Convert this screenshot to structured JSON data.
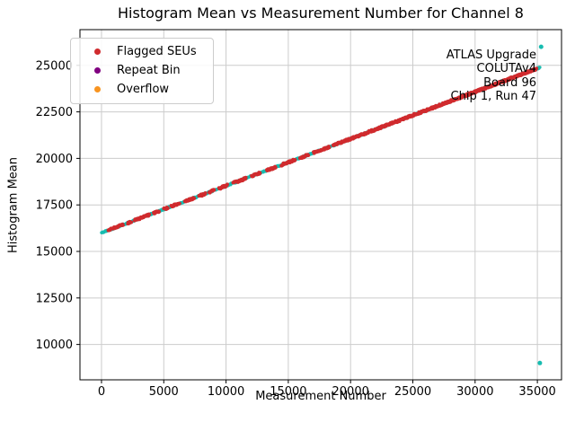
{
  "figure": {
    "title": "Histogram Mean vs Measurement Number for Channel 8",
    "xlabel": "Measurement Number",
    "ylabel": "Histogram Mean"
  },
  "chart_data": {
    "type": "scatter",
    "title": "Histogram Mean vs Measurement Number for Channel 8",
    "xlabel": "Measurement Number",
    "ylabel": "Histogram Mean",
    "xlim": [
      -1730,
      36940
    ],
    "ylim": [
      8100,
      26920
    ],
    "x_ticks": [
      0,
      5000,
      10000,
      15000,
      20000,
      25000,
      30000,
      35000
    ],
    "y_ticks": [
      10000,
      12500,
      15000,
      17500,
      20000,
      22500,
      25000
    ],
    "grid": true,
    "grid_color": "#cccccc",
    "legend_position": "upper-left",
    "legend": [
      {
        "label": "Flagged SEUs",
        "color": "#d02b2e",
        "marker": "dot"
      },
      {
        "label": "Repeat Bin",
        "color": "#800080",
        "marker": "dot"
      },
      {
        "label": "Overflow",
        "color": "#f89420",
        "marker": "dot"
      }
    ],
    "annotations": [
      "ATLAS Upgrade",
      "COLUTAv4",
      "Board 96",
      "Chip 1, Run 47"
    ],
    "base_series": {
      "name": "Histogram Mean",
      "color": "#17bcb0",
      "n_points": 900,
      "marker_radius": 1.7,
      "trend": {
        "x_start": 0,
        "y_start": 16000,
        "x_end": 35200,
        "y_end": 24890
      },
      "value_jitter": 40,
      "sampled_trend_x": [
        0,
        5000,
        10000,
        15000,
        20000,
        25000,
        30000,
        35000
      ],
      "sampled_trend_y": [
        16000,
        17260,
        18530,
        19790,
        21050,
        22320,
        23580,
        24840
      ],
      "outliers": [
        [
          35300,
          26000
        ],
        [
          35200,
          9000
        ]
      ],
      "outlier_radius": 2.5
    },
    "flagged_series": {
      "name": "Flagged SEUs",
      "color": "#d02b2e",
      "marker_radius": 2.0,
      "value_jitter": 50,
      "coverage_segments": [
        [
          0.015,
          0.05
        ],
        [
          0.06,
          0.068
        ],
        [
          0.075,
          0.11
        ],
        [
          0.118,
          0.132
        ],
        [
          0.142,
          0.152
        ],
        [
          0.158,
          0.178
        ],
        [
          0.19,
          0.212
        ],
        [
          0.222,
          0.238
        ],
        [
          0.245,
          0.258
        ],
        [
          0.268,
          0.288
        ],
        [
          0.3,
          0.33
        ],
        [
          0.342,
          0.362
        ],
        [
          0.376,
          0.398
        ],
        [
          0.41,
          0.442
        ],
        [
          0.452,
          0.472
        ],
        [
          0.483,
          0.52
        ],
        [
          0.528,
          0.993
        ]
      ]
    },
    "repeat_bin_series": {
      "name": "Repeat Bin",
      "color": "#800080",
      "points": []
    },
    "overflow_series": {
      "name": "Overflow",
      "color": "#f89420",
      "points": []
    }
  }
}
